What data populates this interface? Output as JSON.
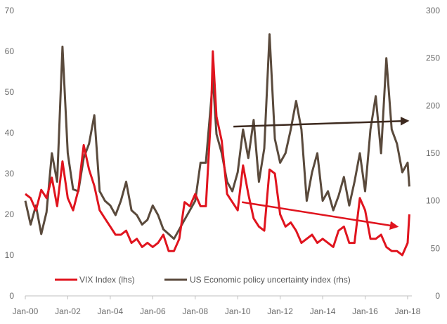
{
  "chart_data": {
    "type": "line",
    "title": "",
    "xlabel": "",
    "ylabel_left": "",
    "ylabel_right": "",
    "x_ticks": [
      "Jan-00",
      "Jan-02",
      "Jan-04",
      "Jan-06",
      "Jan-08",
      "Jan-10",
      "Jan-12",
      "Jan-14",
      "Jan-16",
      "Jan-18"
    ],
    "y_left": {
      "min": 0,
      "max": 70,
      "ticks": [
        0,
        10,
        20,
        30,
        40,
        50,
        60,
        70
      ]
    },
    "y_right": {
      "min": 0,
      "max": 300,
      "ticks": [
        0,
        50,
        100,
        150,
        200,
        250,
        300
      ]
    },
    "grid": false,
    "legend_position": "bottom-left",
    "colors": {
      "vix": "#e0141e",
      "epu": "#5a4a3c",
      "axis": "#bfbfbf",
      "tick_text": "#6b6b6b"
    },
    "series": [
      {
        "name": "VIX Index (lhs)",
        "axis": "left",
        "points": [
          [
            2000.0,
            25
          ],
          [
            2000.25,
            24
          ],
          [
            2000.5,
            21
          ],
          [
            2000.75,
            26
          ],
          [
            2001.0,
            24
          ],
          [
            2001.25,
            29
          ],
          [
            2001.5,
            22
          ],
          [
            2001.75,
            33
          ],
          [
            2002.0,
            24
          ],
          [
            2002.25,
            21
          ],
          [
            2002.5,
            26
          ],
          [
            2002.75,
            37
          ],
          [
            2003.0,
            31
          ],
          [
            2003.25,
            27
          ],
          [
            2003.5,
            21
          ],
          [
            2003.75,
            19
          ],
          [
            2004.0,
            17
          ],
          [
            2004.25,
            15
          ],
          [
            2004.5,
            15
          ],
          [
            2004.75,
            16
          ],
          [
            2005.0,
            13
          ],
          [
            2005.25,
            14
          ],
          [
            2005.5,
            12
          ],
          [
            2005.75,
            13
          ],
          [
            2006.0,
            12
          ],
          [
            2006.25,
            13
          ],
          [
            2006.5,
            15
          ],
          [
            2006.75,
            11
          ],
          [
            2007.0,
            11
          ],
          [
            2007.25,
            14
          ],
          [
            2007.5,
            23
          ],
          [
            2007.75,
            22
          ],
          [
            2008.0,
            25
          ],
          [
            2008.25,
            22
          ],
          [
            2008.5,
            22
          ],
          [
            2008.75,
            45
          ],
          [
            2008.83,
            60
          ],
          [
            2009.0,
            44
          ],
          [
            2009.25,
            38
          ],
          [
            2009.5,
            25
          ],
          [
            2009.75,
            23
          ],
          [
            2010.0,
            21
          ],
          [
            2010.25,
            32
          ],
          [
            2010.5,
            25
          ],
          [
            2010.75,
            19
          ],
          [
            2011.0,
            17
          ],
          [
            2011.25,
            16
          ],
          [
            2011.5,
            31
          ],
          [
            2011.75,
            30
          ],
          [
            2012.0,
            20
          ],
          [
            2012.25,
            17
          ],
          [
            2012.5,
            18
          ],
          [
            2012.75,
            16
          ],
          [
            2013.0,
            13
          ],
          [
            2013.25,
            14
          ],
          [
            2013.5,
            15
          ],
          [
            2013.75,
            13
          ],
          [
            2014.0,
            14
          ],
          [
            2014.25,
            13
          ],
          [
            2014.5,
            12
          ],
          [
            2014.75,
            16
          ],
          [
            2015.0,
            17
          ],
          [
            2015.25,
            13
          ],
          [
            2015.5,
            13
          ],
          [
            2015.75,
            24
          ],
          [
            2016.0,
            21
          ],
          [
            2016.25,
            14
          ],
          [
            2016.5,
            14
          ],
          [
            2016.75,
            15
          ],
          [
            2017.0,
            12
          ],
          [
            2017.25,
            11
          ],
          [
            2017.5,
            11
          ],
          [
            2017.75,
            10
          ],
          [
            2018.0,
            13
          ],
          [
            2018.08,
            20
          ]
        ]
      },
      {
        "name": "US Economic policy uncertainty index (rhs)",
        "axis": "right",
        "points": [
          [
            2000.0,
            100
          ],
          [
            2000.25,
            75
          ],
          [
            2000.5,
            95
          ],
          [
            2000.75,
            65
          ],
          [
            2001.0,
            88
          ],
          [
            2001.25,
            150
          ],
          [
            2001.5,
            120
          ],
          [
            2001.75,
            262
          ],
          [
            2002.0,
            150
          ],
          [
            2002.25,
            112
          ],
          [
            2002.5,
            110
          ],
          [
            2002.75,
            145
          ],
          [
            2003.0,
            160
          ],
          [
            2003.25,
            190
          ],
          [
            2003.5,
            110
          ],
          [
            2003.75,
            100
          ],
          [
            2004.0,
            95
          ],
          [
            2004.25,
            85
          ],
          [
            2004.5,
            100
          ],
          [
            2004.75,
            120
          ],
          [
            2005.0,
            90
          ],
          [
            2005.25,
            85
          ],
          [
            2005.5,
            75
          ],
          [
            2005.75,
            80
          ],
          [
            2006.0,
            95
          ],
          [
            2006.25,
            85
          ],
          [
            2006.5,
            70
          ],
          [
            2006.75,
            65
          ],
          [
            2007.0,
            60
          ],
          [
            2007.25,
            70
          ],
          [
            2007.5,
            80
          ],
          [
            2007.75,
            90
          ],
          [
            2008.0,
            100
          ],
          [
            2008.25,
            140
          ],
          [
            2008.5,
            140
          ],
          [
            2008.75,
            205
          ],
          [
            2008.83,
            230
          ],
          [
            2009.0,
            170
          ],
          [
            2009.25,
            150
          ],
          [
            2009.5,
            120
          ],
          [
            2009.75,
            110
          ],
          [
            2010.0,
            130
          ],
          [
            2010.25,
            175
          ],
          [
            2010.5,
            145
          ],
          [
            2010.75,
            185
          ],
          [
            2011.0,
            120
          ],
          [
            2011.25,
            155
          ],
          [
            2011.5,
            275
          ],
          [
            2011.75,
            165
          ],
          [
            2012.0,
            140
          ],
          [
            2012.25,
            150
          ],
          [
            2012.5,
            175
          ],
          [
            2012.75,
            205
          ],
          [
            2013.0,
            175
          ],
          [
            2013.25,
            100
          ],
          [
            2013.5,
            130
          ],
          [
            2013.75,
            150
          ],
          [
            2014.0,
            100
          ],
          [
            2014.25,
            110
          ],
          [
            2014.5,
            90
          ],
          [
            2014.75,
            105
          ],
          [
            2015.0,
            125
          ],
          [
            2015.25,
            95
          ],
          [
            2015.5,
            120
          ],
          [
            2015.75,
            150
          ],
          [
            2016.0,
            110
          ],
          [
            2016.25,
            175
          ],
          [
            2016.5,
            210
          ],
          [
            2016.75,
            150
          ],
          [
            2017.0,
            250
          ],
          [
            2017.25,
            175
          ],
          [
            2017.5,
            160
          ],
          [
            2017.75,
            130
          ],
          [
            2018.0,
            140
          ],
          [
            2018.08,
            115
          ]
        ]
      }
    ],
    "annotations": [
      {
        "type": "arrow",
        "series": "US Economic policy uncertainty index (rhs)",
        "axis": "right",
        "from": [
          2009.8,
          178
        ],
        "to": [
          2018.0,
          184
        ]
      },
      {
        "type": "arrow",
        "series": "VIX Index (lhs)",
        "axis": "left",
        "from": [
          2010.2,
          23
        ],
        "to": [
          2017.5,
          17
        ]
      }
    ]
  }
}
